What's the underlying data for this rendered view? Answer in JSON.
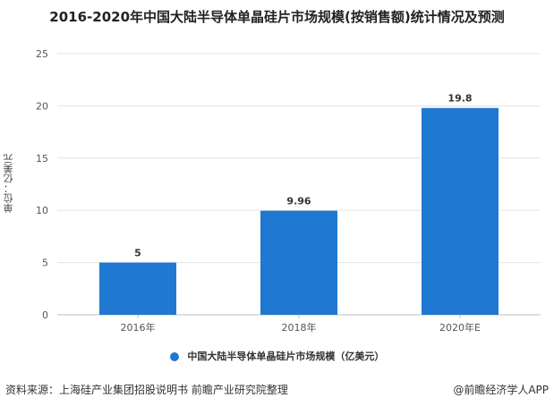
{
  "chart_data": {
    "type": "bar",
    "title": "2016-2020年中国大陆半导体单晶硅片市场规模(按销售额)统计情况及预测",
    "ylabel": "单位：亿美元",
    "xlabel": "",
    "categories": [
      "2016年",
      "2018年",
      "2020年E"
    ],
    "series": [
      {
        "name": "中国大陆半导体单晶硅片市场规模（亿美元）",
        "values": [
          5,
          9.96,
          19.8
        ],
        "color": "#1f78d1"
      }
    ],
    "data_labels": [
      "5",
      "9.96",
      "19.8"
    ],
    "ylim": [
      0,
      25
    ],
    "yticks": [
      0,
      5,
      10,
      15,
      20,
      25
    ],
    "grid": true,
    "legend_position": "bottom"
  },
  "footer": {
    "source": "资料来源：上海硅产业集团招股说明书 前瞻产业研究院整理",
    "brand": "@前瞻经济学人APP"
  }
}
